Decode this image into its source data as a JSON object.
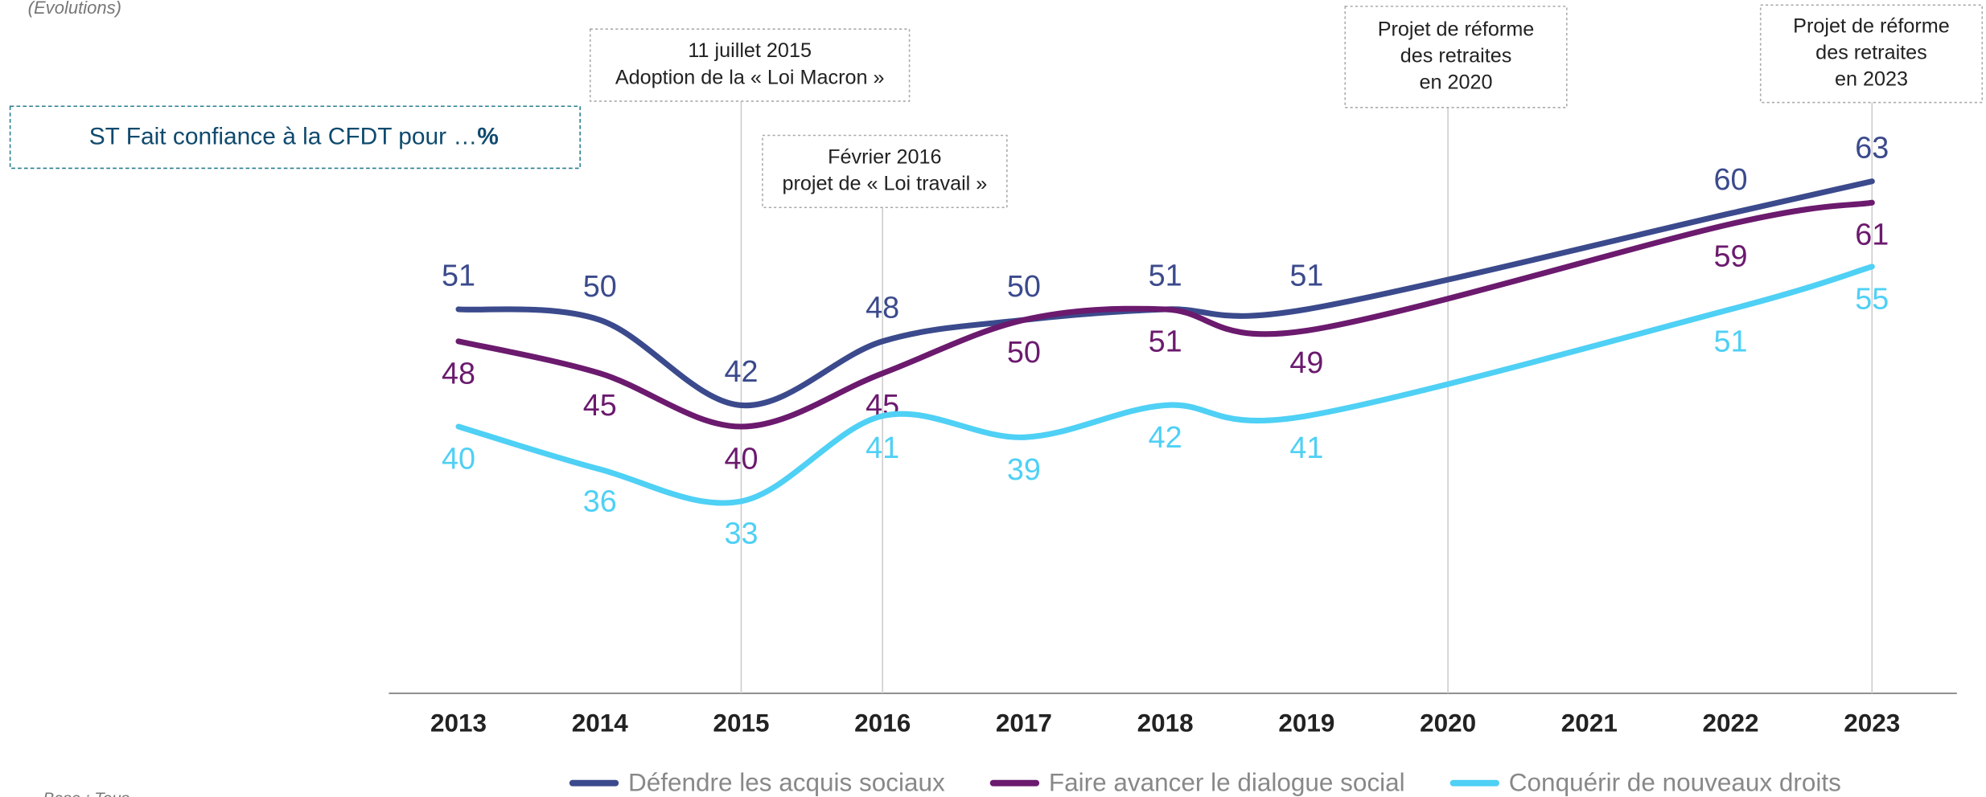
{
  "chart_data": {
    "type": "line",
    "subtitle": "(Evolutions)",
    "box_title": {
      "text": "ST Fait confiance à la CFDT pour …",
      "bold": "%"
    },
    "footnote": "Base : Tous",
    "x": [
      2013,
      2014,
      2015,
      2016,
      2017,
      2018,
      2019,
      2022,
      2023
    ],
    "xlim": [
      2013,
      2023
    ],
    "xticks": [
      2013,
      2014,
      2015,
      2016,
      2017,
      2018,
      2019,
      2020,
      2021,
      2022,
      2023
    ],
    "ylim": [
      15,
      80
    ],
    "series": [
      {
        "name": "Défendre les acquis sociaux",
        "color": "#3b4a8c",
        "values": [
          51,
          50,
          42,
          48,
          50,
          51,
          51,
          60,
          63
        ],
        "label_pos": "above"
      },
      {
        "name": "Faire avancer le dialogue social",
        "color": "#6b1a6e",
        "values": [
          48,
          45,
          40,
          45,
          50,
          51,
          49,
          59,
          61
        ],
        "label_pos": "below"
      },
      {
        "name": "Conquérir de nouveaux droits",
        "color": "#4fd0f5",
        "values": [
          40,
          36,
          33,
          41,
          39,
          42,
          41,
          51,
          55
        ],
        "label_pos": "below"
      }
    ],
    "annotations": [
      {
        "x": 2015,
        "lines": [
          "11 juillet 2015",
          "Adoption de la « Loi Macron »"
        ]
      },
      {
        "x": 2016,
        "lines": [
          "Février 2016",
          "projet de « Loi travail »"
        ]
      },
      {
        "x": 2020,
        "lines": [
          "Projet de réforme",
          "des retraites",
          "en 2020"
        ]
      },
      {
        "x": 2023,
        "lines": [
          "Projet de réforme",
          "des retraites",
          "en 2023"
        ]
      }
    ],
    "legend": "bottom"
  }
}
